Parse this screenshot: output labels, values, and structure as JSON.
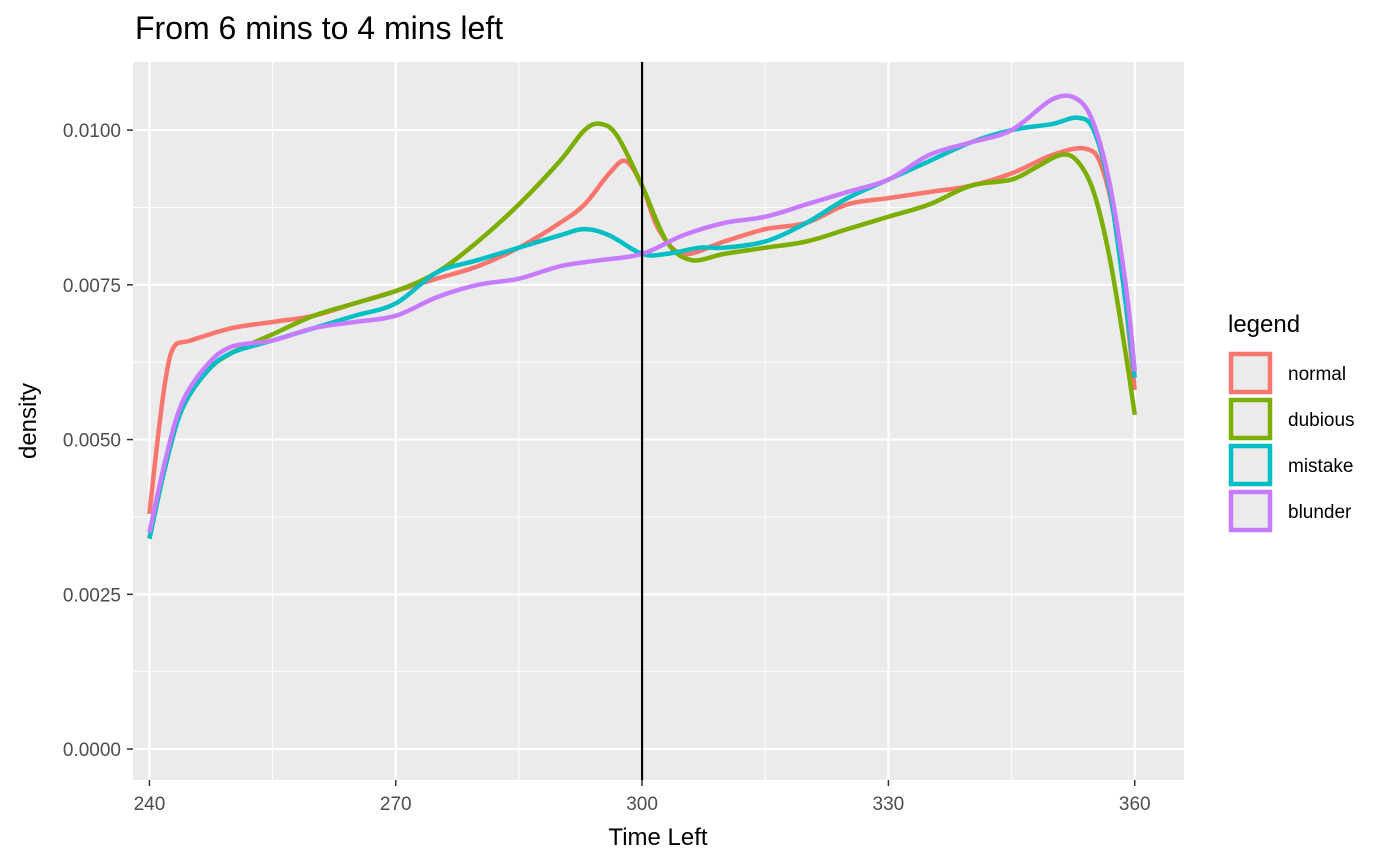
{
  "chart_data": {
    "type": "line",
    "title": "From 6 mins to 4 mins left",
    "xlabel": "Time Left",
    "ylabel": "density",
    "xlim": [
      238,
      366
    ],
    "ylim": [
      -0.0005,
      0.0111
    ],
    "x_ticks": [
      240,
      270,
      300,
      330,
      360
    ],
    "y_ticks": [
      0,
      0.0025,
      0.005,
      0.0075,
      0.01
    ],
    "y_tick_labels": [
      "0.0000",
      "0.0025",
      "0.0050",
      "0.0075",
      "0.0100"
    ],
    "grid": true,
    "vline": 300,
    "legend": {
      "title": "legend",
      "position": "right"
    },
    "series": [
      {
        "name": "normal",
        "color": "#F8766D",
        "points": [
          [
            240,
            0.0038
          ],
          [
            241,
            0.005
          ],
          [
            242,
            0.006
          ],
          [
            243,
            0.0065
          ],
          [
            245,
            0.0066
          ],
          [
            250,
            0.0068
          ],
          [
            255,
            0.0069
          ],
          [
            260,
            0.007
          ],
          [
            265,
            0.0072
          ],
          [
            270,
            0.0074
          ],
          [
            275,
            0.0076
          ],
          [
            280,
            0.0078
          ],
          [
            285,
            0.0081
          ],
          [
            290,
            0.0085
          ],
          [
            293,
            0.0088
          ],
          [
            296,
            0.0093
          ],
          [
            298,
            0.0095
          ],
          [
            300,
            0.0091
          ],
          [
            302,
            0.0084
          ],
          [
            305,
            0.008
          ],
          [
            310,
            0.0082
          ],
          [
            315,
            0.0084
          ],
          [
            320,
            0.0085
          ],
          [
            325,
            0.0088
          ],
          [
            330,
            0.0089
          ],
          [
            335,
            0.009
          ],
          [
            340,
            0.0091
          ],
          [
            345,
            0.0093
          ],
          [
            350,
            0.0096
          ],
          [
            354,
            0.0097
          ],
          [
            356,
            0.0094
          ],
          [
            358,
            0.0082
          ],
          [
            360,
            0.0058
          ]
        ]
      },
      {
        "name": "dubious",
        "color": "#7CAE00",
        "points": [
          [
            240,
            0.0034
          ],
          [
            242,
            0.0046
          ],
          [
            244,
            0.0055
          ],
          [
            247,
            0.0061
          ],
          [
            250,
            0.0064
          ],
          [
            255,
            0.0067
          ],
          [
            260,
            0.007
          ],
          [
            265,
            0.0072
          ],
          [
            270,
            0.0074
          ],
          [
            275,
            0.0077
          ],
          [
            280,
            0.0082
          ],
          [
            285,
            0.0088
          ],
          [
            290,
            0.0095
          ],
          [
            293,
            0.01
          ],
          [
            295,
            0.0101
          ],
          [
            297,
            0.0099
          ],
          [
            300,
            0.0091
          ],
          [
            303,
            0.0082
          ],
          [
            306,
            0.0079
          ],
          [
            310,
            0.008
          ],
          [
            315,
            0.0081
          ],
          [
            320,
            0.0082
          ],
          [
            325,
            0.0084
          ],
          [
            330,
            0.0086
          ],
          [
            335,
            0.0088
          ],
          [
            340,
            0.0091
          ],
          [
            345,
            0.0092
          ],
          [
            348,
            0.0094
          ],
          [
            351,
            0.0096
          ],
          [
            353,
            0.0095
          ],
          [
            355,
            0.009
          ],
          [
            357,
            0.0079
          ],
          [
            359,
            0.0063
          ],
          [
            360,
            0.0054
          ]
        ]
      },
      {
        "name": "mistake",
        "color": "#00BFC4",
        "points": [
          [
            240,
            0.0034
          ],
          [
            242,
            0.0046
          ],
          [
            244,
            0.0055
          ],
          [
            247,
            0.0061
          ],
          [
            250,
            0.0064
          ],
          [
            255,
            0.0066
          ],
          [
            260,
            0.0068
          ],
          [
            265,
            0.007
          ],
          [
            270,
            0.0072
          ],
          [
            275,
            0.0077
          ],
          [
            280,
            0.0079
          ],
          [
            285,
            0.0081
          ],
          [
            290,
            0.0083
          ],
          [
            293,
            0.0084
          ],
          [
            296,
            0.0083
          ],
          [
            300,
            0.008
          ],
          [
            303,
            0.008
          ],
          [
            307,
            0.0081
          ],
          [
            310,
            0.0081
          ],
          [
            315,
            0.0082
          ],
          [
            320,
            0.0085
          ],
          [
            325,
            0.0089
          ],
          [
            330,
            0.0092
          ],
          [
            335,
            0.0095
          ],
          [
            340,
            0.0098
          ],
          [
            345,
            0.01
          ],
          [
            350,
            0.0101
          ],
          [
            353,
            0.0102
          ],
          [
            355,
            0.01
          ],
          [
            357,
            0.009
          ],
          [
            359,
            0.0071
          ],
          [
            360,
            0.006
          ]
        ]
      },
      {
        "name": "blunder",
        "color": "#C77CFF",
        "points": [
          [
            240,
            0.0035
          ],
          [
            242,
            0.0047
          ],
          [
            244,
            0.0056
          ],
          [
            247,
            0.0062
          ],
          [
            250,
            0.0065
          ],
          [
            255,
            0.0066
          ],
          [
            260,
            0.0068
          ],
          [
            265,
            0.0069
          ],
          [
            270,
            0.007
          ],
          [
            275,
            0.0073
          ],
          [
            280,
            0.0075
          ],
          [
            285,
            0.0076
          ],
          [
            290,
            0.0078
          ],
          [
            295,
            0.0079
          ],
          [
            300,
            0.008
          ],
          [
            305,
            0.0083
          ],
          [
            310,
            0.0085
          ],
          [
            315,
            0.0086
          ],
          [
            320,
            0.0088
          ],
          [
            325,
            0.009
          ],
          [
            330,
            0.0092
          ],
          [
            335,
            0.0096
          ],
          [
            340,
            0.0098
          ],
          [
            345,
            0.01
          ],
          [
            350,
            0.0105
          ],
          [
            353,
            0.0105
          ],
          [
            355,
            0.0101
          ],
          [
            357,
            0.0091
          ],
          [
            359,
            0.0074
          ],
          [
            360,
            0.0061
          ]
        ]
      }
    ]
  }
}
